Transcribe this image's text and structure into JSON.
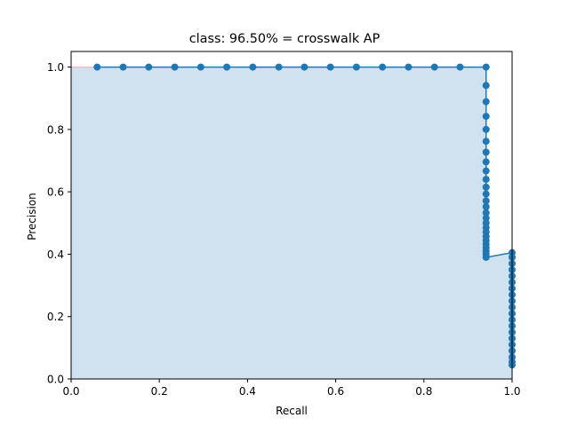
{
  "chart_data": {
    "type": "area",
    "title": "class: 96.50% = crosswalk AP",
    "xlabel": "Recall",
    "ylabel": "Precision",
    "xlim": [
      0.0,
      1.0
    ],
    "ylim": [
      0.0,
      1.05
    ],
    "xticks": [
      "0.0",
      "0.2",
      "0.4",
      "0.6",
      "0.8",
      "1.0"
    ],
    "yticks": [
      "0.0",
      "0.2",
      "0.4",
      "0.6",
      "0.8",
      "1.0"
    ],
    "grid": false,
    "colors": {
      "line": "#1f77b4",
      "fill": "#d0e2f0",
      "interpolated_edge": "#f4a6a6"
    },
    "series": [
      {
        "points": [
          [
            0.059,
            1.0
          ],
          [
            0.118,
            1.0
          ],
          [
            0.176,
            1.0
          ],
          [
            0.235,
            1.0
          ],
          [
            0.294,
            1.0
          ],
          [
            0.353,
            1.0
          ],
          [
            0.412,
            1.0
          ],
          [
            0.471,
            1.0
          ],
          [
            0.529,
            1.0
          ],
          [
            0.588,
            1.0
          ],
          [
            0.647,
            1.0
          ],
          [
            0.706,
            1.0
          ],
          [
            0.765,
            1.0
          ],
          [
            0.824,
            1.0
          ],
          [
            0.882,
            1.0
          ],
          [
            0.941,
            1.0
          ],
          [
            0.941,
            0.941
          ],
          [
            0.941,
            0.889
          ],
          [
            0.941,
            0.842
          ],
          [
            0.941,
            0.8
          ],
          [
            0.941,
            0.762
          ],
          [
            0.941,
            0.727
          ],
          [
            0.941,
            0.696
          ],
          [
            0.941,
            0.667
          ],
          [
            0.941,
            0.64
          ],
          [
            0.941,
            0.615
          ],
          [
            0.941,
            0.593
          ],
          [
            0.941,
            0.571
          ],
          [
            0.941,
            0.552
          ],
          [
            0.941,
            0.533
          ],
          [
            0.941,
            0.516
          ],
          [
            0.941,
            0.5
          ],
          [
            0.941,
            0.485
          ],
          [
            0.941,
            0.471
          ],
          [
            0.941,
            0.457
          ],
          [
            0.941,
            0.444
          ],
          [
            0.941,
            0.432
          ],
          [
            0.941,
            0.421
          ],
          [
            0.941,
            0.41
          ],
          [
            0.941,
            0.4
          ],
          [
            0.941,
            0.39
          ],
          [
            1.0,
            0.405
          ],
          [
            1.0,
            0.39
          ],
          [
            1.0,
            0.37
          ],
          [
            1.0,
            0.35
          ],
          [
            1.0,
            0.33
          ],
          [
            1.0,
            0.31
          ],
          [
            1.0,
            0.29
          ],
          [
            1.0,
            0.27
          ],
          [
            1.0,
            0.25
          ],
          [
            1.0,
            0.23
          ],
          [
            1.0,
            0.21
          ],
          [
            1.0,
            0.19
          ],
          [
            1.0,
            0.17
          ],
          [
            1.0,
            0.15
          ],
          [
            1.0,
            0.13
          ],
          [
            1.0,
            0.11
          ],
          [
            1.0,
            0.09
          ],
          [
            1.0,
            0.07
          ],
          [
            1.0,
            0.055
          ],
          [
            1.0,
            0.045
          ]
        ]
      }
    ]
  }
}
